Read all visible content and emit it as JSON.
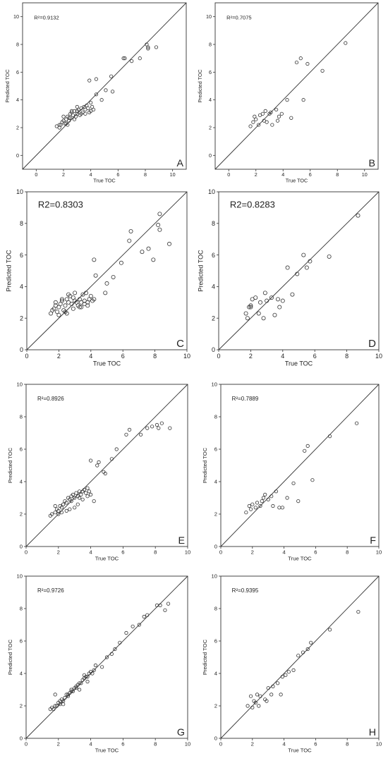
{
  "chart_data": [
    {
      "type": "scatter",
      "panel_label": "A",
      "annotation": "R²=0.9132",
      "xlabel": "True TOC",
      "ylabel": "Predicted TOC",
      "xlim": [
        -1,
        11
      ],
      "ylim": [
        -1,
        11
      ],
      "xticks": [
        0,
        2,
        4,
        6,
        8,
        10
      ],
      "yticks": [
        0,
        2,
        4,
        6,
        8,
        10
      ],
      "x": [
        1.5,
        1.7,
        1.8,
        1.9,
        2.0,
        2.1,
        2.2,
        2.3,
        2.3,
        2.4,
        2.5,
        2.5,
        2.6,
        2.7,
        2.8,
        2.9,
        3.0,
        3.0,
        3.1,
        3.2,
        3.3,
        3.4,
        3.5,
        3.6,
        3.7,
        3.8,
        3.9,
        4.0,
        4.1,
        4.2,
        2.2,
        2.8,
        3.3,
        2.0,
        2.6,
        3.0,
        3.6,
        4.0,
        4.4,
        4.8,
        5.1,
        5.5,
        5.6,
        6.4,
        6.5,
        7.0,
        7.6,
        8.1,
        8.2,
        8.2,
        8.8,
        3.9,
        4.4,
        1.7,
        2.4
      ],
      "y": [
        2.1,
        2.0,
        2.2,
        2.4,
        2.5,
        2.3,
        2.6,
        2.2,
        2.8,
        2.5,
        3.0,
        2.7,
        3.1,
        2.9,
        3.2,
        2.8,
        3.0,
        3.2,
        3.3,
        2.9,
        3.4,
        3.1,
        3.5,
        3.3,
        3.6,
        3.4,
        3.1,
        3.2,
        3.5,
        3.3,
        2.3,
        2.6,
        3.0,
        2.8,
        3.2,
        3.5,
        3.0,
        3.8,
        4.4,
        4.0,
        4.7,
        5.7,
        4.6,
        7.0,
        7.0,
        6.8,
        7.0,
        8.0,
        7.8,
        7.7,
        7.8,
        5.4,
        5.5,
        2.2,
        2.7
      ]
    },
    {
      "type": "scatter",
      "panel_label": "B",
      "annotation": "R²=0.7075",
      "xlabel": "True TOC",
      "ylabel": "Predicted TOC",
      "xlim": [
        -1,
        11
      ],
      "ylim": [
        -1,
        11
      ],
      "xticks": [
        0,
        2,
        4,
        6,
        8,
        10
      ],
      "yticks": [
        0,
        2,
        4,
        6,
        8,
        10
      ],
      "x": [
        1.6,
        1.8,
        1.9,
        2.0,
        2.2,
        2.3,
        2.5,
        2.6,
        2.7,
        2.8,
        3.0,
        3.1,
        3.2,
        3.5,
        3.6,
        3.7,
        3.9,
        4.3,
        4.6,
        5.0,
        5.3,
        5.5,
        5.8,
        6.9,
        8.6
      ],
      "y": [
        2.1,
        2.4,
        2.8,
        2.6,
        2.2,
        2.9,
        3.0,
        2.5,
        3.2,
        2.4,
        3.0,
        3.1,
        2.2,
        3.3,
        2.5,
        2.8,
        3.0,
        4.0,
        2.7,
        6.7,
        7.0,
        4.0,
        6.6,
        6.1,
        8.1
      ]
    },
    {
      "type": "scatter",
      "panel_label": "C",
      "annotation": "R2=0.8303",
      "xlabel": "True TOC",
      "ylabel": "Predicted TOC",
      "xlim": [
        0,
        10
      ],
      "ylim": [
        0,
        10
      ],
      "xticks": [
        0,
        2,
        4,
        6,
        8,
        10
      ],
      "yticks": [
        0,
        2,
        4,
        6,
        8,
        10
      ],
      "x": [
        1.5,
        1.6,
        1.7,
        1.8,
        1.9,
        2.0,
        2.1,
        2.2,
        2.3,
        2.4,
        2.5,
        2.6,
        2.7,
        2.8,
        2.9,
        3.0,
        3.1,
        3.2,
        3.3,
        3.4,
        3.5,
        3.6,
        3.7,
        3.8,
        3.9,
        4.0,
        4.1,
        2.0,
        2.4,
        2.9,
        3.3,
        3.8,
        2.2,
        2.6,
        3.0,
        3.4,
        1.8,
        2.5,
        3.6,
        4.2,
        4.3,
        5.0,
        5.4,
        5.9,
        6.4,
        6.5,
        7.2,
        7.6,
        7.9,
        8.2,
        8.3,
        8.3,
        8.9,
        4.2,
        4.9
      ],
      "y": [
        2.3,
        2.5,
        2.6,
        2.8,
        2.4,
        2.7,
        2.9,
        3.1,
        2.5,
        2.8,
        3.2,
        3.0,
        3.4,
        2.9,
        3.3,
        3.1,
        3.0,
        2.8,
        3.2,
        2.7,
        3.5,
        3.1,
        3.6,
        3.0,
        3.2,
        3.4,
        3.1,
        2.2,
        2.4,
        2.6,
        2.7,
        2.8,
        3.2,
        3.5,
        3.6,
        3.0,
        3.0,
        2.3,
        2.9,
        3.2,
        4.7,
        4.2,
        4.6,
        5.5,
        6.9,
        7.5,
        6.2,
        6.4,
        5.7,
        7.9,
        8.6,
        7.6,
        6.7,
        5.7,
        3.6
      ]
    },
    {
      "type": "scatter",
      "panel_label": "D",
      "annotation": "R2=0.8283",
      "xlabel": "True TOC",
      "ylabel": "Predicted TOC",
      "xlim": [
        0,
        10
      ],
      "ylim": [
        0,
        10
      ],
      "xticks": [
        0,
        2,
        4,
        6,
        8,
        10
      ],
      "yticks": [
        0,
        2,
        4,
        6,
        8,
        10
      ],
      "x": [
        1.7,
        1.8,
        1.9,
        2.0,
        2.1,
        2.3,
        2.5,
        2.6,
        2.8,
        2.9,
        3.0,
        3.3,
        3.5,
        3.7,
        3.8,
        4.0,
        4.3,
        4.6,
        4.9,
        5.3,
        5.5,
        5.7,
        6.9,
        8.7,
        2.0
      ],
      "y": [
        2.3,
        2.0,
        2.7,
        2.8,
        3.2,
        3.3,
        2.3,
        3.0,
        2.0,
        3.6,
        3.1,
        3.3,
        2.2,
        3.2,
        2.7,
        3.1,
        5.2,
        3.5,
        4.8,
        6.0,
        5.2,
        5.6,
        5.9,
        8.5,
        2.7
      ]
    },
    {
      "type": "scatter",
      "panel_label": "E",
      "annotation": "R²=0.8926",
      "xlabel": "True TOC",
      "ylabel": "Predicted TOC",
      "xlim": [
        0,
        10
      ],
      "ylim": [
        0,
        10
      ],
      "xticks": [
        0,
        2,
        4,
        6,
        8,
        10
      ],
      "yticks": [
        0,
        2,
        4,
        6,
        8,
        10
      ],
      "x": [
        1.5,
        1.6,
        1.8,
        1.9,
        2.0,
        2.1,
        2.2,
        2.3,
        2.4,
        2.5,
        2.6,
        2.7,
        2.8,
        2.9,
        3.0,
        3.1,
        3.2,
        3.3,
        3.4,
        3.5,
        3.6,
        3.7,
        3.8,
        3.9,
        4.0,
        4.2,
        2.0,
        2.5,
        3.0,
        3.5,
        1.8,
        2.3,
        2.8,
        3.3,
        3.8,
        2.2,
        2.7,
        3.2,
        4.0,
        4.4,
        4.8,
        4.9,
        5.3,
        5.6,
        6.2,
        6.4,
        7.1,
        7.5,
        7.8,
        8.1,
        8.2,
        8.4,
        8.9,
        4.5
      ],
      "y": [
        1.9,
        2.0,
        2.1,
        2.3,
        2.2,
        2.5,
        2.4,
        2.6,
        2.8,
        2.7,
        3.0,
        2.9,
        3.1,
        3.2,
        3.0,
        3.3,
        3.1,
        3.4,
        3.2,
        3.4,
        3.5,
        3.3,
        3.1,
        3.4,
        3.2,
        2.8,
        2.0,
        2.2,
        2.4,
        2.9,
        2.5,
        2.6,
        2.8,
        3.0,
        3.6,
        2.1,
        2.3,
        2.6,
        5.3,
        5.0,
        4.6,
        4.5,
        5.4,
        6.0,
        6.9,
        7.2,
        6.9,
        7.3,
        7.4,
        7.5,
        7.3,
        7.6,
        7.3,
        5.2
      ]
    },
    {
      "type": "scatter",
      "panel_label": "F",
      "annotation": "R²=0.7889",
      "xlabel": "True TOC",
      "ylabel": "Predicted TOC",
      "xlim": [
        0,
        10
      ],
      "ylim": [
        0,
        10
      ],
      "xticks": [
        0,
        2,
        4,
        6,
        8,
        10
      ],
      "yticks": [
        0,
        2,
        4,
        6,
        8,
        10
      ],
      "x": [
        1.6,
        1.8,
        1.9,
        2.0,
        2.2,
        2.3,
        2.5,
        2.6,
        2.7,
        2.8,
        3.0,
        3.2,
        3.3,
        3.5,
        3.7,
        3.9,
        4.2,
        4.6,
        4.9,
        5.3,
        5.5,
        5.8,
        6.9,
        8.6
      ],
      "y": [
        2.1,
        2.5,
        2.3,
        2.6,
        2.4,
        2.7,
        2.5,
        2.8,
        3.0,
        3.2,
        2.9,
        3.1,
        2.5,
        3.4,
        2.4,
        2.4,
        3.0,
        3.9,
        2.8,
        5.9,
        6.2,
        4.1,
        6.8,
        7.6
      ]
    },
    {
      "type": "scatter",
      "panel_label": "G",
      "annotation": "R²=0.9726",
      "xlabel": "True TOC",
      "ylabel": "Predicted TOC",
      "xlim": [
        0,
        10
      ],
      "ylim": [
        0,
        10
      ],
      "xticks": [
        0,
        2,
        4,
        6,
        8,
        10
      ],
      "yticks": [
        0,
        2,
        4,
        6,
        8,
        10
      ],
      "x": [
        1.5,
        1.6,
        1.7,
        1.8,
        1.9,
        2.0,
        2.1,
        2.2,
        2.3,
        2.4,
        2.5,
        2.6,
        2.7,
        2.8,
        2.9,
        3.0,
        3.1,
        3.2,
        3.3,
        3.4,
        3.5,
        3.6,
        3.7,
        3.8,
        3.9,
        4.0,
        4.1,
        4.2,
        1.8,
        2.3,
        2.8,
        3.3,
        3.8,
        2.1,
        2.6,
        3.1,
        3.6,
        4.3,
        4.7,
        5.0,
        5.3,
        5.5,
        5.8,
        6.2,
        6.6,
        7.0,
        7.3,
        7.5,
        8.1,
        8.3,
        8.6,
        8.8
      ],
      "y": [
        1.8,
        1.9,
        1.8,
        2.0,
        2.0,
        2.2,
        2.1,
        2.4,
        2.3,
        2.5,
        2.7,
        2.6,
        2.8,
        3.0,
        2.9,
        3.1,
        3.1,
        3.3,
        3.4,
        3.4,
        3.6,
        3.7,
        3.8,
        3.8,
        4.0,
        4.1,
        4.0,
        4.2,
        2.7,
        2.1,
        2.9,
        3.0,
        3.5,
        2.3,
        2.7,
        3.2,
        3.9,
        4.5,
        4.4,
        5.0,
        5.2,
        5.5,
        5.9,
        6.5,
        6.9,
        7.0,
        7.5,
        7.6,
        8.2,
        8.2,
        7.9,
        8.3
      ]
    },
    {
      "type": "scatter",
      "panel_label": "H",
      "annotation": "R²=0.9395",
      "xlabel": "True TOC",
      "ylabel": "Predicted TOC",
      "xlim": [
        0,
        10
      ],
      "ylim": [
        0,
        10
      ],
      "xticks": [
        0,
        2,
        4,
        6,
        8,
        10
      ],
      "yticks": [
        0,
        2,
        4,
        6,
        8,
        10
      ],
      "x": [
        1.7,
        1.9,
        2.0,
        2.1,
        2.3,
        2.4,
        2.5,
        2.8,
        3.0,
        3.2,
        3.3,
        3.6,
        3.8,
        3.9,
        4.1,
        4.3,
        4.6,
        4.9,
        5.2,
        5.5,
        5.7,
        6.9,
        8.7,
        2.2,
        2.9
      ],
      "y": [
        2.0,
        2.6,
        1.9,
        2.3,
        2.7,
        2.0,
        2.6,
        2.4,
        3.1,
        2.7,
        3.2,
        3.4,
        2.7,
        3.8,
        3.9,
        4.1,
        4.2,
        5.1,
        5.3,
        5.5,
        5.9,
        6.7,
        7.8,
        2.2,
        2.3
      ]
    }
  ]
}
